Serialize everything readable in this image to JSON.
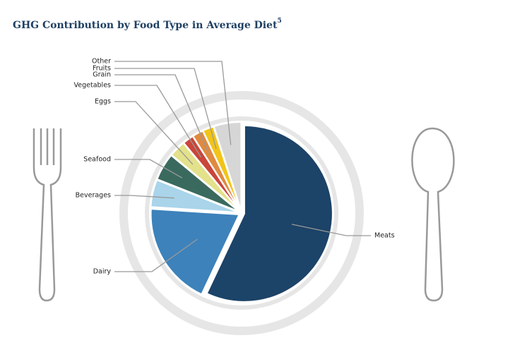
{
  "chart_data": {
    "type": "pie",
    "title": "GHG Contribution by Food Type in Average Diet",
    "title_note": "5",
    "categories": [
      "Meats",
      "Dairy",
      "Beverages",
      "Seafood",
      "Eggs",
      "Vegetables",
      "Grain",
      "Fruits",
      "Other"
    ],
    "values": [
      57,
      19,
      5,
      5,
      3,
      2,
      2,
      2,
      5
    ],
    "colors": [
      "#1c4368",
      "#3d82bb",
      "#a9d4ea",
      "#3a6a5e",
      "#e3e18a",
      "#c9463a",
      "#e08a3f",
      "#f2c418",
      "#d6d6d6"
    ]
  }
}
